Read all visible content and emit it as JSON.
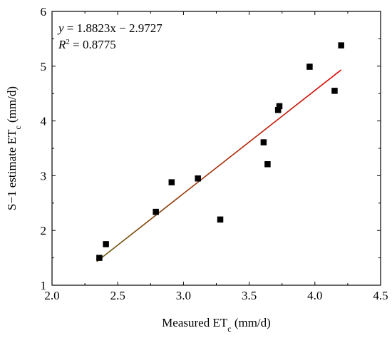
{
  "chart_data": {
    "type": "scatter",
    "xlabel": {
      "main": "Measured ET",
      "sub": "c",
      "unit": " (mm/d)"
    },
    "ylabel": {
      "main": "S−1 estimate ET",
      "sub": "c",
      "unit": " (mm/d)"
    },
    "xlim": [
      2.0,
      4.5
    ],
    "ylim": [
      1,
      6
    ],
    "x_ticks": [
      2.0,
      2.5,
      3.0,
      3.5,
      4.0,
      4.5
    ],
    "y_ticks": [
      1,
      2,
      3,
      4,
      5,
      6
    ],
    "x_tick_labels": [
      "2.0",
      "2.5",
      "3.0",
      "3.5",
      "4.0",
      "4.5"
    ],
    "y_tick_labels": [
      "1",
      "2",
      "3",
      "4",
      "5",
      "6"
    ],
    "series": [
      {
        "marker": "square",
        "color": "#000000",
        "points": [
          [
            2.36,
            1.5
          ],
          [
            2.41,
            1.75
          ],
          [
            2.79,
            2.34
          ],
          [
            2.91,
            2.88
          ],
          [
            3.11,
            2.95
          ],
          [
            3.28,
            2.2
          ],
          [
            3.61,
            3.61
          ],
          [
            3.64,
            3.21
          ],
          [
            3.72,
            4.2
          ],
          [
            3.73,
            4.27
          ],
          [
            3.96,
            4.99
          ],
          [
            4.15,
            4.55
          ],
          [
            4.2,
            5.38
          ]
        ]
      }
    ],
    "fit_line": {
      "slope": 1.8823,
      "intercept": -2.9727,
      "x_range": [
        2.34,
        4.2
      ],
      "gradient_colors": [
        "#6b5a10",
        "#e00000"
      ]
    },
    "annotations": {
      "equation": "y = 1.8823x − 2.9727",
      "r2": "R2 = 0.8775"
    },
    "grid": false,
    "legend": "none"
  }
}
